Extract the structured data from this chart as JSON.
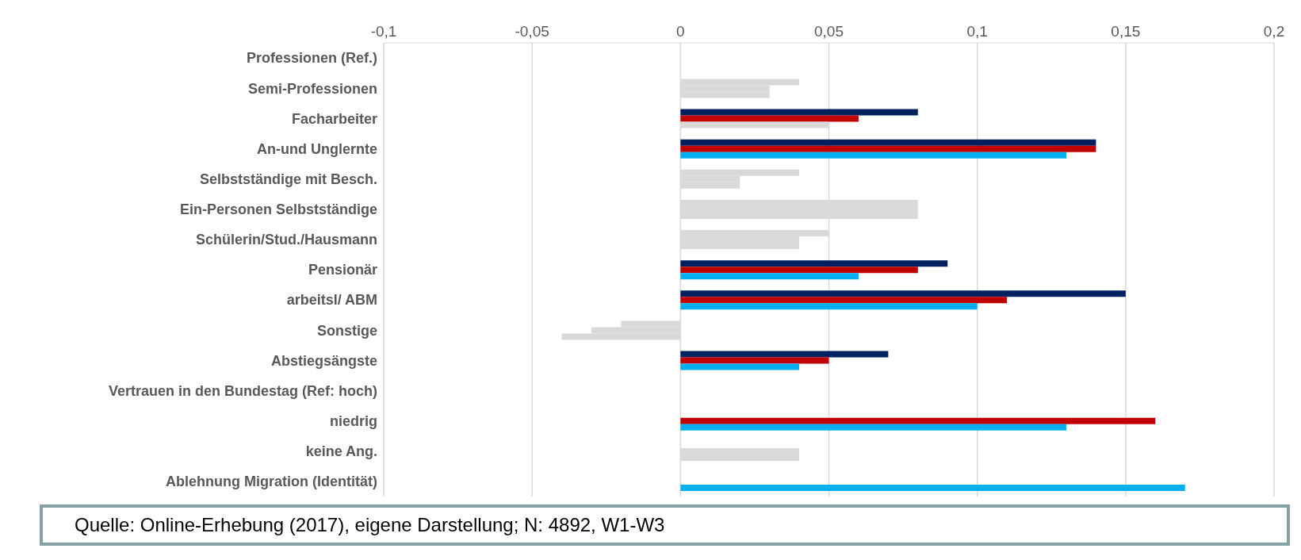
{
  "chart_data": {
    "type": "bar",
    "orientation": "horizontal",
    "categories": [
      "Professionen (Ref.)",
      "Semi-Professionen",
      "Facharbeiter",
      "An-und Unglernte",
      "Selbstständige mit Besch.",
      "Ein-Personen Selbstständige",
      "Schülerin/Stud./Hausmann",
      "Pensionär",
      "arbeitsl/ ABM",
      "Sonstige",
      "Abstiegsängste",
      "Vertrauen in den Bundestag (Ref: hoch)",
      "niedrig",
      "keine Ang.",
      "Ablehnung Migration (Identität)"
    ],
    "series": [
      {
        "colors": [
          "#002060",
          "#d9d9d9",
          "#002060",
          "#002060",
          "#d9d9d9",
          "#d9d9d9",
          "#d9d9d9",
          "#002060",
          "#002060",
          "#d9d9d9",
          "#002060",
          "#002060",
          "#002060",
          "#002060",
          "#002060"
        ],
        "values": [
          null,
          0.04,
          0.08,
          0.14,
          0.04,
          0.08,
          0.05,
          0.09,
          0.15,
          -0.02,
          0.07,
          null,
          null,
          null,
          null
        ]
      },
      {
        "colors": [
          "#c00000",
          "#d9d9d9",
          "#c00000",
          "#c00000",
          "#d9d9d9",
          "#d9d9d9",
          "#d9d9d9",
          "#c00000",
          "#c00000",
          "#d9d9d9",
          "#c00000",
          "#c00000",
          "#c00000",
          "#d9d9d9",
          "#c00000"
        ],
        "values": [
          null,
          0.03,
          0.06,
          0.14,
          0.02,
          0.08,
          0.04,
          0.08,
          0.11,
          -0.03,
          0.05,
          null,
          0.16,
          0.04,
          null
        ]
      },
      {
        "colors": [
          "#00b0f0",
          "#d9d9d9",
          "#d9d9d9",
          "#00b0f0",
          "#d9d9d9",
          "#d9d9d9",
          "#d9d9d9",
          "#00b0f0",
          "#00b0f0",
          "#d9d9d9",
          "#00b0f0",
          "#00b0f0",
          "#00b0f0",
          "#d9d9d9",
          "#00b0f0"
        ],
        "values": [
          null,
          0.03,
          0.05,
          0.13,
          0.02,
          0.08,
          0.04,
          0.06,
          0.1,
          -0.04,
          0.04,
          null,
          0.13,
          0.04,
          0.17
        ]
      }
    ],
    "xlim": [
      -0.1,
      0.2
    ],
    "xticks": [
      {
        "value": -0.1,
        "label": "-0,1"
      },
      {
        "value": -0.05,
        "label": "-0,05"
      },
      0,
      {
        "value": 0.05,
        "label": "0,05"
      },
      {
        "value": 0.1,
        "label": "0,1"
      },
      {
        "value": 0.15,
        "label": "0,15"
      },
      {
        "value": 0.2,
        "label": "0,2"
      }
    ],
    "grid": "x",
    "annotations": [
      "Quelle: Online-Erhebung (2017), eigene Darstellung; N: 4892, W1-W3"
    ]
  }
}
